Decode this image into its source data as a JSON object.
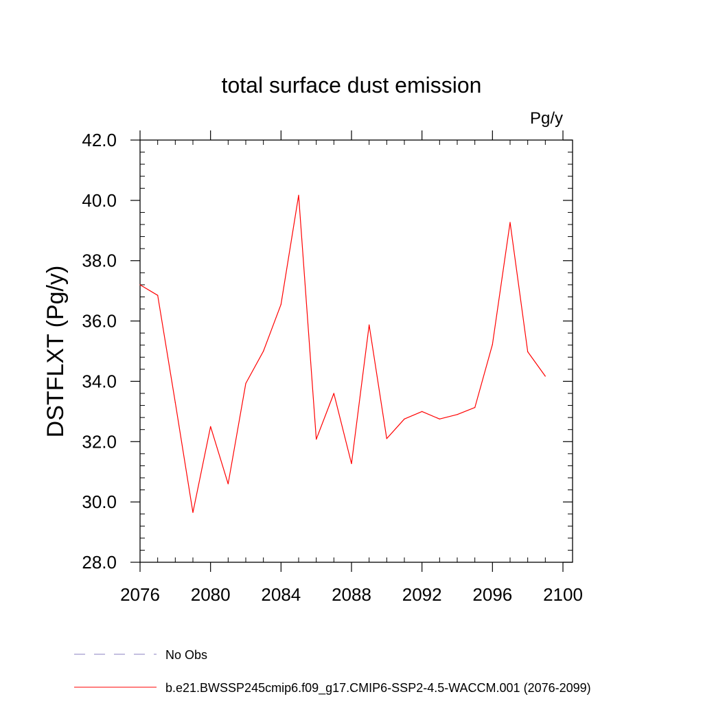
{
  "chart_data": {
    "type": "line",
    "title": "total surface dust emission",
    "units_label": "Pg/y",
    "ylabel": "DSTFLXT  (Pg/y)",
    "xlabel": "",
    "xlim": [
      2076,
      2100
    ],
    "ylim": [
      28.0,
      42.0
    ],
    "x_ticks": [
      2076,
      2080,
      2084,
      2088,
      2092,
      2096,
      2100
    ],
    "x_tick_labels": [
      "2076",
      "2080",
      "2084",
      "2088",
      "2092",
      "2096",
      "2100"
    ],
    "x_minor_step": 1,
    "y_ticks": [
      28.0,
      30.0,
      32.0,
      34.0,
      36.0,
      38.0,
      40.0,
      42.0
    ],
    "y_tick_labels": [
      "28.0",
      "30.0",
      "32.0",
      "34.0",
      "36.0",
      "38.0",
      "40.0",
      "42.0"
    ],
    "y_minor_step": 0.4,
    "grid": false,
    "legend_position": "bottom",
    "series": [
      {
        "name": "b.e21.BWSSP245cmip6.f09_g17.CMIP6-SSP2-4.5-WACCM.001 (2076-2099)",
        "color": "#ff0000",
        "style": "solid",
        "x": [
          2076,
          2077,
          2078,
          2079,
          2080,
          2081,
          2082,
          2083,
          2084,
          2085,
          2086,
          2087,
          2088,
          2089,
          2090,
          2091,
          2092,
          2093,
          2094,
          2095,
          2096,
          2097,
          2098,
          2099
        ],
        "values": [
          37.2,
          36.85,
          33.3,
          29.65,
          32.5,
          30.6,
          33.93,
          35.0,
          36.55,
          40.17,
          32.08,
          33.6,
          31.27,
          35.87,
          32.1,
          32.75,
          33.0,
          32.75,
          32.9,
          33.13,
          35.22,
          39.27,
          34.98,
          34.17
        ]
      }
    ],
    "legend": [
      {
        "label": "No Obs",
        "color": "#8a7fc0",
        "style": "dashed"
      },
      {
        "label": "b.e21.BWSSP245cmip6.f09_g17.CMIP6-SSP2-4.5-WACCM.001 (2076-2099)",
        "color": "#ff0000",
        "style": "solid"
      }
    ]
  }
}
